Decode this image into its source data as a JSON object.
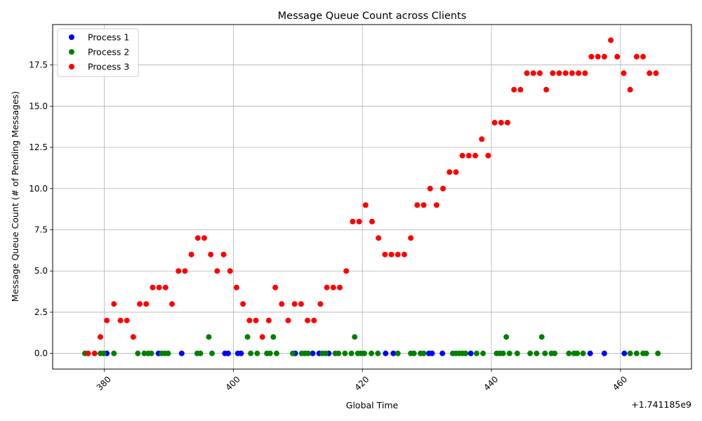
{
  "chart_data": {
    "type": "scatter",
    "title": "Message Queue Count across Clients",
    "xlabel": "Global Time",
    "ylabel": "Message Queue Count (# of Pending Messages)",
    "offset_label": "+1.741185e9",
    "xlim": [
      372,
      471
    ],
    "ylim": [
      -0.95,
      19.95
    ],
    "x_ticks": [
      380,
      400,
      420,
      440,
      460
    ],
    "x_tick_labels": [
      "380",
      "400",
      "420",
      "440",
      "460"
    ],
    "y_ticks": [
      0,
      2.5,
      5,
      7.5,
      10,
      12.5,
      15,
      17.5
    ],
    "y_tick_labels": [
      "0.0",
      "2.5",
      "5.0",
      "7.5",
      "10.0",
      "12.5",
      "15.0",
      "17.5"
    ],
    "grid": true,
    "legend_position": "top-left",
    "series": [
      {
        "name": "Process 1",
        "color": "#0000ff",
        "points": [
          [
            380.4,
            0
          ],
          [
            388.4,
            0
          ],
          [
            392,
            0
          ],
          [
            398.7,
            0
          ],
          [
            399.2,
            0
          ],
          [
            400.7,
            0
          ],
          [
            401.2,
            0
          ],
          [
            409.6,
            0
          ],
          [
            412.3,
            0
          ],
          [
            413.3,
            0
          ],
          [
            414.8,
            0
          ],
          [
            423.6,
            0
          ],
          [
            424.8,
            0
          ],
          [
            430.3,
            0
          ],
          [
            430.8,
            0
          ],
          [
            432.4,
            0
          ],
          [
            436.8,
            0
          ],
          [
            455.3,
            0
          ],
          [
            457.5,
            0
          ],
          [
            460.6,
            0
          ]
        ]
      },
      {
        "name": "Process 2",
        "color": "#008000",
        "points": [
          [
            377,
            0
          ],
          [
            379.4,
            0
          ],
          [
            379.9,
            0
          ],
          [
            381.5,
            0
          ],
          [
            385.2,
            0
          ],
          [
            386.2,
            0
          ],
          [
            386.8,
            0
          ],
          [
            387.3,
            0
          ],
          [
            388.9,
            0
          ],
          [
            389.4,
            0
          ],
          [
            389.9,
            0
          ],
          [
            394.4,
            0
          ],
          [
            394.9,
            0
          ],
          [
            396.2,
            1
          ],
          [
            396.7,
            0
          ],
          [
            402.2,
            1
          ],
          [
            402.7,
            0
          ],
          [
            403.7,
            0
          ],
          [
            405.2,
            0
          ],
          [
            405.7,
            0
          ],
          [
            406.2,
            1
          ],
          [
            406.7,
            0
          ],
          [
            409.2,
            0
          ],
          [
            410.6,
            0
          ],
          [
            411.1,
            0
          ],
          [
            411.6,
            0
          ],
          [
            413.8,
            0
          ],
          [
            414.3,
            0
          ],
          [
            415.8,
            0
          ],
          [
            416.3,
            0
          ],
          [
            417.3,
            0
          ],
          [
            418.3,
            0
          ],
          [
            418.8,
            1
          ],
          [
            419.3,
            0
          ],
          [
            419.8,
            0
          ],
          [
            420.3,
            0
          ],
          [
            421.4,
            0
          ],
          [
            422.4,
            0
          ],
          [
            425.5,
            0
          ],
          [
            427.5,
            0
          ],
          [
            428,
            0
          ],
          [
            429,
            0
          ],
          [
            429.5,
            0
          ],
          [
            434,
            0
          ],
          [
            434.5,
            0
          ],
          [
            435,
            0
          ],
          [
            435.5,
            0
          ],
          [
            436,
            0
          ],
          [
            437.7,
            0
          ],
          [
            438.7,
            0
          ],
          [
            440.8,
            0
          ],
          [
            441.3,
            0
          ],
          [
            441.8,
            0
          ],
          [
            442.3,
            1
          ],
          [
            442.8,
            0
          ],
          [
            444,
            0
          ],
          [
            446,
            0
          ],
          [
            447,
            0
          ],
          [
            447.8,
            1
          ],
          [
            448.3,
            0
          ],
          [
            449.3,
            0
          ],
          [
            449.8,
            0
          ],
          [
            452,
            0
          ],
          [
            452.8,
            0
          ],
          [
            453.3,
            0
          ],
          [
            454.2,
            0
          ],
          [
            461.5,
            0
          ],
          [
            462.5,
            0
          ],
          [
            463.5,
            0
          ],
          [
            464,
            0
          ],
          [
            465.8,
            0
          ]
        ]
      },
      {
        "name": "Process 3",
        "color": "#ff0000",
        "points": [
          [
            377.5,
            0
          ],
          [
            378.5,
            0
          ],
          [
            379.4,
            1
          ],
          [
            380.4,
            2
          ],
          [
            381.5,
            3
          ],
          [
            382.5,
            2
          ],
          [
            383.5,
            2
          ],
          [
            384.5,
            1
          ],
          [
            385.5,
            3
          ],
          [
            386.5,
            3
          ],
          [
            387.5,
            4
          ],
          [
            388.5,
            4
          ],
          [
            389.5,
            4
          ],
          [
            390.5,
            3
          ],
          [
            391.5,
            5
          ],
          [
            392.5,
            5
          ],
          [
            393.5,
            6
          ],
          [
            394.5,
            7
          ],
          [
            395.5,
            7
          ],
          [
            396.5,
            6
          ],
          [
            397.5,
            5
          ],
          [
            398.5,
            6
          ],
          [
            399.5,
            5
          ],
          [
            400.5,
            4
          ],
          [
            401.5,
            3
          ],
          [
            402.5,
            2
          ],
          [
            403.5,
            2
          ],
          [
            404.5,
            1
          ],
          [
            405.5,
            2
          ],
          [
            406.5,
            4
          ],
          [
            407.5,
            3
          ],
          [
            408.5,
            2
          ],
          [
            409.5,
            3
          ],
          [
            410.5,
            3
          ],
          [
            411.5,
            2
          ],
          [
            412.5,
            2
          ],
          [
            413.5,
            3
          ],
          [
            414.5,
            4
          ],
          [
            415.5,
            4
          ],
          [
            416.5,
            4
          ],
          [
            417.5,
            5
          ],
          [
            418.5,
            8
          ],
          [
            419.5,
            8
          ],
          [
            420.5,
            9
          ],
          [
            421.5,
            8
          ],
          [
            422.5,
            7
          ],
          [
            423.5,
            6
          ],
          [
            424.5,
            6
          ],
          [
            425.5,
            6
          ],
          [
            426.5,
            6
          ],
          [
            427.5,
            7
          ],
          [
            428.5,
            9
          ],
          [
            429.5,
            9
          ],
          [
            430.5,
            10
          ],
          [
            431.5,
            9
          ],
          [
            432.5,
            10
          ],
          [
            433.5,
            11
          ],
          [
            434.5,
            11
          ],
          [
            435.5,
            12
          ],
          [
            436.5,
            12
          ],
          [
            437.5,
            12
          ],
          [
            438.5,
            13
          ],
          [
            439.5,
            12
          ],
          [
            440.5,
            14
          ],
          [
            441.5,
            14
          ],
          [
            442.5,
            14
          ],
          [
            443.5,
            16
          ],
          [
            444.5,
            16
          ],
          [
            445.5,
            17
          ],
          [
            446.5,
            17
          ],
          [
            447.5,
            17
          ],
          [
            448.5,
            16
          ],
          [
            449.5,
            17
          ],
          [
            450.5,
            17
          ],
          [
            451.5,
            17
          ],
          [
            452.5,
            17
          ],
          [
            453.5,
            17
          ],
          [
            454.5,
            17
          ],
          [
            455.5,
            18
          ],
          [
            456.5,
            18
          ],
          [
            457.5,
            18
          ],
          [
            458.5,
            19
          ],
          [
            459.5,
            18
          ],
          [
            460.5,
            17
          ],
          [
            461.5,
            16
          ],
          [
            462.5,
            18
          ],
          [
            463.5,
            18
          ],
          [
            464.5,
            17
          ],
          [
            465.5,
            17
          ]
        ]
      }
    ]
  }
}
